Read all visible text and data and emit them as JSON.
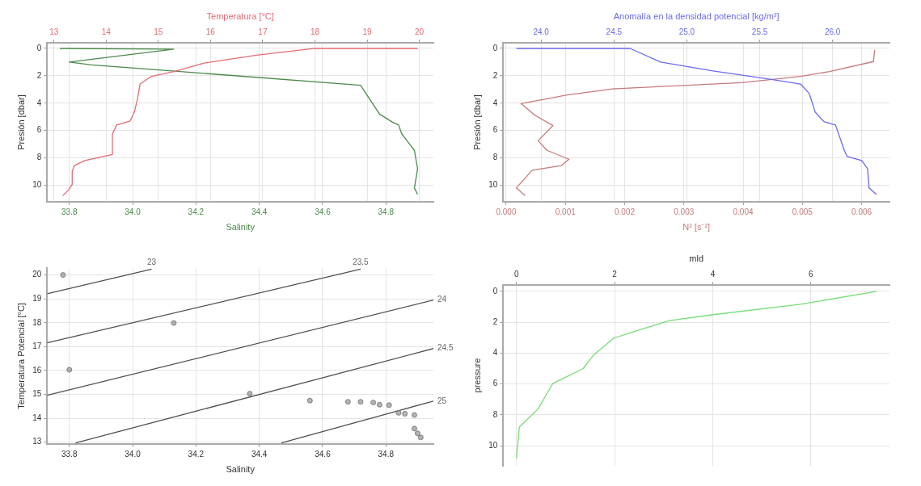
{
  "chart_data": [
    {
      "type": "line",
      "ylabel": "Presión [dbar]",
      "xlabel": "Salinity",
      "x2label": "Temperatura [°C]",
      "ylim": [
        11.2,
        -0.4
      ],
      "yticks": [
        0,
        2,
        4,
        6,
        8,
        10
      ],
      "xlim": [
        33.73,
        34.95
      ],
      "xticks": [
        {
          "value": 33.8,
          "label": "33.8"
        },
        {
          "value": 34,
          "label": "34.0"
        },
        {
          "value": 34.2,
          "label": "34.2"
        },
        {
          "value": 34.4,
          "label": "34.4"
        },
        {
          "value": 34.6,
          "label": "34.6"
        },
        {
          "value": 34.8,
          "label": "34.8"
        }
      ],
      "x2lim": [
        12.87,
        20.27
      ],
      "x2ticks": [
        13,
        14,
        15,
        16,
        17,
        18,
        19,
        20
      ],
      "grid": true,
      "legend": false,
      "series": [
        {
          "color": "#e66a73",
          "axis": "x2",
          "x": [
            19.97,
            18.0,
            16.88,
            15.88,
            15.3,
            14.87,
            14.65,
            14.6,
            14.54,
            14.46,
            14.2,
            14.12,
            14.12,
            13.98,
            13.59,
            13.39,
            13.35,
            13.35,
            13.28,
            13.17
          ],
          "values": [
            0,
            0,
            0.5,
            1.07,
            1.69,
            2.04,
            2.6,
            3.7,
            4.65,
            5.3,
            5.6,
            6.25,
            7.75,
            7.87,
            8.2,
            8.56,
            9.0,
            9.94,
            10.35,
            10.75
          ]
        },
        {
          "color": "#4a8a4a",
          "x": [
            33.77,
            34.13,
            33.8,
            33.87,
            34.72,
            34.74,
            34.78,
            34.82,
            34.84,
            34.85,
            34.89,
            34.9,
            34.89,
            34.9
          ],
          "values": [
            0,
            0.05,
            1.0,
            1.2,
            2.69,
            3.4,
            4.8,
            5.38,
            5.6,
            6.24,
            7.45,
            8.8,
            10.2,
            10.67
          ]
        }
      ]
    },
    {
      "type": "line",
      "ylabel": "Presión [dbar]",
      "xlabel": "N² [s⁻²]",
      "x2label": "Anomalía en la densidad potencial [kg/m³]",
      "ylim": [
        11.2,
        -0.4
      ],
      "yticks": [
        0,
        2,
        4,
        6,
        8,
        10
      ],
      "xlim": [
        -5e-05,
        0.00647
      ],
      "xticks": [
        {
          "value": 0,
          "label": "0.000"
        },
        0.001,
        0.002,
        0.003,
        0.004,
        0.005,
        0.006
      ],
      "x2lim": [
        23.74,
        26.39
      ],
      "x2ticks": [
        {
          "value": 24,
          "label": "24.0"
        },
        24.5,
        {
          "value": 25,
          "label": "25.0"
        },
        25.5,
        {
          "value": 26,
          "label": "26.0"
        }
      ],
      "grid": true,
      "legend": false,
      "series": [
        {
          "color": "#6a6af0",
          "axis": "x2",
          "x": [
            23.83,
            24.61,
            24.82,
            25.18,
            25.58,
            25.78,
            25.84,
            25.88,
            25.94,
            26.02,
            26.08,
            26.1,
            26.2,
            26.24,
            26.25,
            26.3
          ],
          "values": [
            0,
            0,
            1.0,
            1.64,
            2.27,
            2.6,
            3.3,
            4.65,
            5.35,
            5.6,
            7.45,
            7.9,
            8.2,
            8.8,
            10.2,
            10.67
          ]
        },
        {
          "color": "#c77a7a",
          "x": [
            0.00622,
            0.0062,
            0.00546,
            0.00497,
            0.00398,
            0.00182,
            0.00103,
            0.00025,
            0.00049,
            0.00079,
            0.00054,
            0.00069,
            0.00106,
            0.00093,
            0.00044,
            0.00017,
            0.00032
          ],
          "values": [
            0.1,
            0.96,
            1.69,
            2.04,
            2.5,
            2.95,
            3.4,
            4.03,
            4.9,
            5.64,
            6.75,
            7.45,
            8.1,
            8.57,
            8.9,
            10.2,
            10.75
          ]
        }
      ]
    },
    {
      "type": "scatter",
      "ylabel": "Temperatura Potencial [°C]",
      "xlabel": "Salinity",
      "ylim": [
        12.93,
        20.29
      ],
      "yticks": [
        13,
        14,
        15,
        16,
        17,
        18,
        19,
        20
      ],
      "xlim": [
        33.73,
        34.95
      ],
      "xticks": [
        {
          "value": 33.8,
          "label": "33.8"
        },
        {
          "value": 34,
          "label": "34.0"
        },
        {
          "value": 34.2,
          "label": "34.2"
        },
        {
          "value": 34.4,
          "label": "34.4"
        },
        {
          "value": 34.6,
          "label": "34.6"
        },
        {
          "value": 34.8,
          "label": "34.8"
        }
      ],
      "grid": true,
      "legend": false,
      "series": [
        {
          "color": "#808080",
          "marker": "circle",
          "x": [
            33.78,
            33.8,
            34.13,
            34.37,
            34.56,
            34.68,
            34.72,
            34.76,
            34.78,
            34.81,
            34.84,
            34.86,
            34.89,
            34.89,
            34.9,
            34.91
          ],
          "values": [
            20.0,
            16.03,
            17.99,
            15.03,
            14.74,
            14.69,
            14.69,
            14.66,
            14.57,
            14.55,
            14.23,
            14.19,
            14.14,
            13.57,
            13.37,
            13.2
          ]
        },
        {
          "type": "line",
          "name": "23",
          "color": "#505050",
          "x": [
            33.73,
            34.06
          ],
          "values": [
            19.21,
            20.24
          ]
        },
        {
          "type": "line",
          "name": "23.5",
          "color": "#505050",
          "x": [
            33.73,
            34.72
          ],
          "values": [
            17.16,
            20.24
          ]
        },
        {
          "type": "line",
          "name": "24",
          "color": "#505050",
          "x": [
            33.73,
            34.95
          ],
          "values": [
            14.96,
            18.95
          ]
        },
        {
          "type": "line",
          "name": "24.5",
          "color": "#505050",
          "x": [
            33.82,
            34.95
          ],
          "values": [
            12.97,
            16.92
          ]
        },
        {
          "type": "line",
          "name": "25",
          "color": "#505050",
          "x": [
            34.47,
            34.95
          ],
          "values": [
            12.97,
            14.72
          ]
        }
      ]
    },
    {
      "type": "line",
      "ylabel": "pressure",
      "xlabel": "mld",
      "ylim": [
        11.3,
        -0.4
      ],
      "yticks": [
        0,
        2,
        4,
        6,
        8,
        10
      ],
      "xlim": [
        -0.27,
        7.6
      ],
      "xticks": [
        0,
        2,
        4,
        6
      ],
      "grid": true,
      "legend": false,
      "series": [
        {
          "color": "#77dd77",
          "x": [
            7.34,
            5.79,
            4.01,
            3.12,
            2.52,
            1.99,
            1.57,
            1.36,
            0.74,
            0.44,
            0.06,
            0.0
          ],
          "values": [
            0,
            0.84,
            1.51,
            1.9,
            2.48,
            3.02,
            4.13,
            5.0,
            5.97,
            7.62,
            8.78,
            10.8
          ]
        }
      ]
    }
  ]
}
